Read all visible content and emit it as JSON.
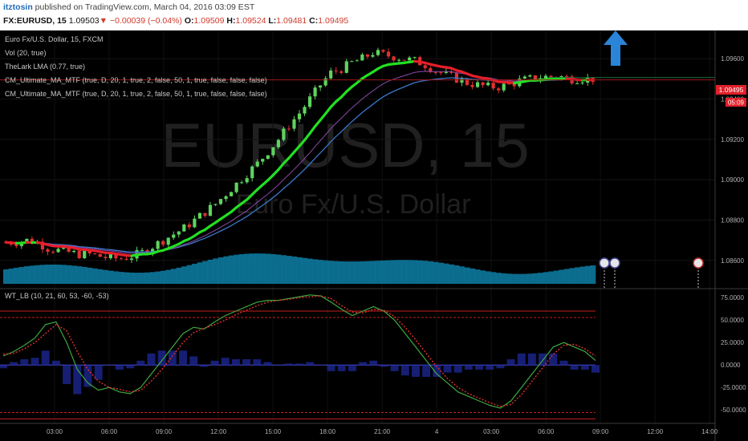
{
  "header": {
    "author": "itztosin",
    "published": "published on TradingView.com, March 04, 2016 03:09 EST",
    "symbol": "FX:EURUSD, 15",
    "last": "1.09503",
    "change": "−0.00039 (−0.04%)",
    "open_label": "O:",
    "open": "1.09509",
    "high_label": "H:",
    "high": "1.09524",
    "low_label": "L:",
    "low": "1.09481",
    "close_label": "C:",
    "close": "1.09495"
  },
  "main_pane": {
    "title": "Euro Fx/U.S. Dollar, 15, FXCM",
    "indicators": [
      "Vol (20, true)",
      "TheLark LMA (0.77, true)",
      "CM_Ultimate_MA_MTF (true, D, 20, 1, true, 2, false, 50, 1, true, false, false, false)",
      "CM_Ultimate_MA_MTF (true, D, 20, 1, true, 2, false, 50, 1, true, false, false, false)"
    ],
    "watermark_symbol": "EURUSD, 15",
    "watermark_desc": "Euro Fx/U.S. Dollar",
    "price_badge": "1.09495",
    "countdown_badge": "05:09",
    "arrow_icon": "up-arrow-icon",
    "event_icons": [
      "event-flag-icon",
      "event-flag-icon",
      "us-flag-icon"
    ]
  },
  "osc_pane": {
    "title": "WT_LB (10, 21, 60, 53, -60, -53)"
  },
  "colors": {
    "bull": "#5fd35f",
    "bear": "#e03030",
    "ma_green": "#22e022",
    "ma_red": "#e81e2a",
    "ma_blue": "#3a78c8",
    "ma_purple": "#8a4aa8",
    "volume": "#0e7fa6",
    "wt1": "#3ea83e",
    "wt2": "#e03030",
    "ob": "#c81e1e",
    "zero": "#5050e0"
  },
  "chart_data": [
    {
      "type": "candlestick",
      "title": "Euro Fx/U.S. Dollar, 15, FXCM",
      "price_ticks": [
        "1.09600",
        "1.09400",
        "1.09200",
        "1.09000",
        "1.08800",
        "1.08600"
      ],
      "time_ticks": [
        "03:00",
        "06:00",
        "09:00",
        "12:00",
        "15:00",
        "18:00",
        "21:00",
        "4",
        "03:00",
        "06:00",
        "09:00",
        "12:00",
        "14:00"
      ],
      "ylim": [
        1.0846,
        1.0974
      ],
      "close_series": [
        1.0869,
        1.0869,
        1.087,
        1.0869,
        1.0866,
        1.0865,
        1.0864,
        1.0863,
        1.0863,
        1.0862,
        1.0861,
        1.0861,
        1.0862,
        1.0864,
        1.0867,
        1.087,
        1.0873,
        1.0876,
        1.088,
        1.0884,
        1.0888,
        1.0893,
        1.0898,
        1.0903,
        1.0908,
        1.0914,
        1.092,
        1.0927,
        1.0933,
        1.094,
        1.0947,
        1.0953,
        1.0955,
        1.0958,
        1.096,
        1.0963,
        1.0962,
        1.0961,
        1.096,
        1.0959,
        1.0957,
        1.0954,
        1.0952,
        1.095,
        1.0948,
        1.0947,
        1.0946,
        1.0946,
        1.0947,
        1.0949,
        1.095,
        1.0951,
        1.0951,
        1.0951,
        1.095,
        1.095,
        1.095
      ],
      "last_price": 1.09495,
      "volume_max": 100
    },
    {
      "type": "line",
      "title": "WT_LB (10, 21, 60, 53, -60, -53)",
      "y_ticks": [
        "75.0000",
        "50.0000",
        "25.0000",
        "0.0000",
        "-25.0000",
        "-50.0000"
      ],
      "ylim": [
        -65,
        85
      ],
      "levels": [
        60,
        53,
        0,
        -53,
        -60
      ],
      "wt1": [
        10,
        15,
        22,
        30,
        45,
        48,
        25,
        -5,
        -20,
        -28,
        -25,
        -30,
        -32,
        -25,
        -10,
        5,
        20,
        35,
        42,
        40,
        48,
        55,
        60,
        65,
        70,
        72,
        72,
        74,
        76,
        78,
        77,
        70,
        62,
        55,
        60,
        65,
        60,
        50,
        35,
        20,
        5,
        -10,
        -20,
        -30,
        -35,
        -40,
        -45,
        -48,
        -40,
        -25,
        -10,
        5,
        20,
        25,
        20,
        15,
        5
      ],
      "wt2": [
        12,
        13,
        18,
        25,
        35,
        45,
        38,
        15,
        -5,
        -18,
        -25,
        -27,
        -30,
        -28,
        -18,
        -5,
        10,
        25,
        36,
        41,
        45,
        50,
        56,
        61,
        66,
        70,
        72,
        73,
        75,
        76,
        77,
        74,
        66,
        59,
        58,
        62,
        61,
        54,
        42,
        28,
        13,
        -2,
        -15,
        -25,
        -32,
        -37,
        -42,
        -46,
        -44,
        -33,
        -18,
        -3,
        12,
        22,
        23,
        18,
        10
      ]
    }
  ]
}
